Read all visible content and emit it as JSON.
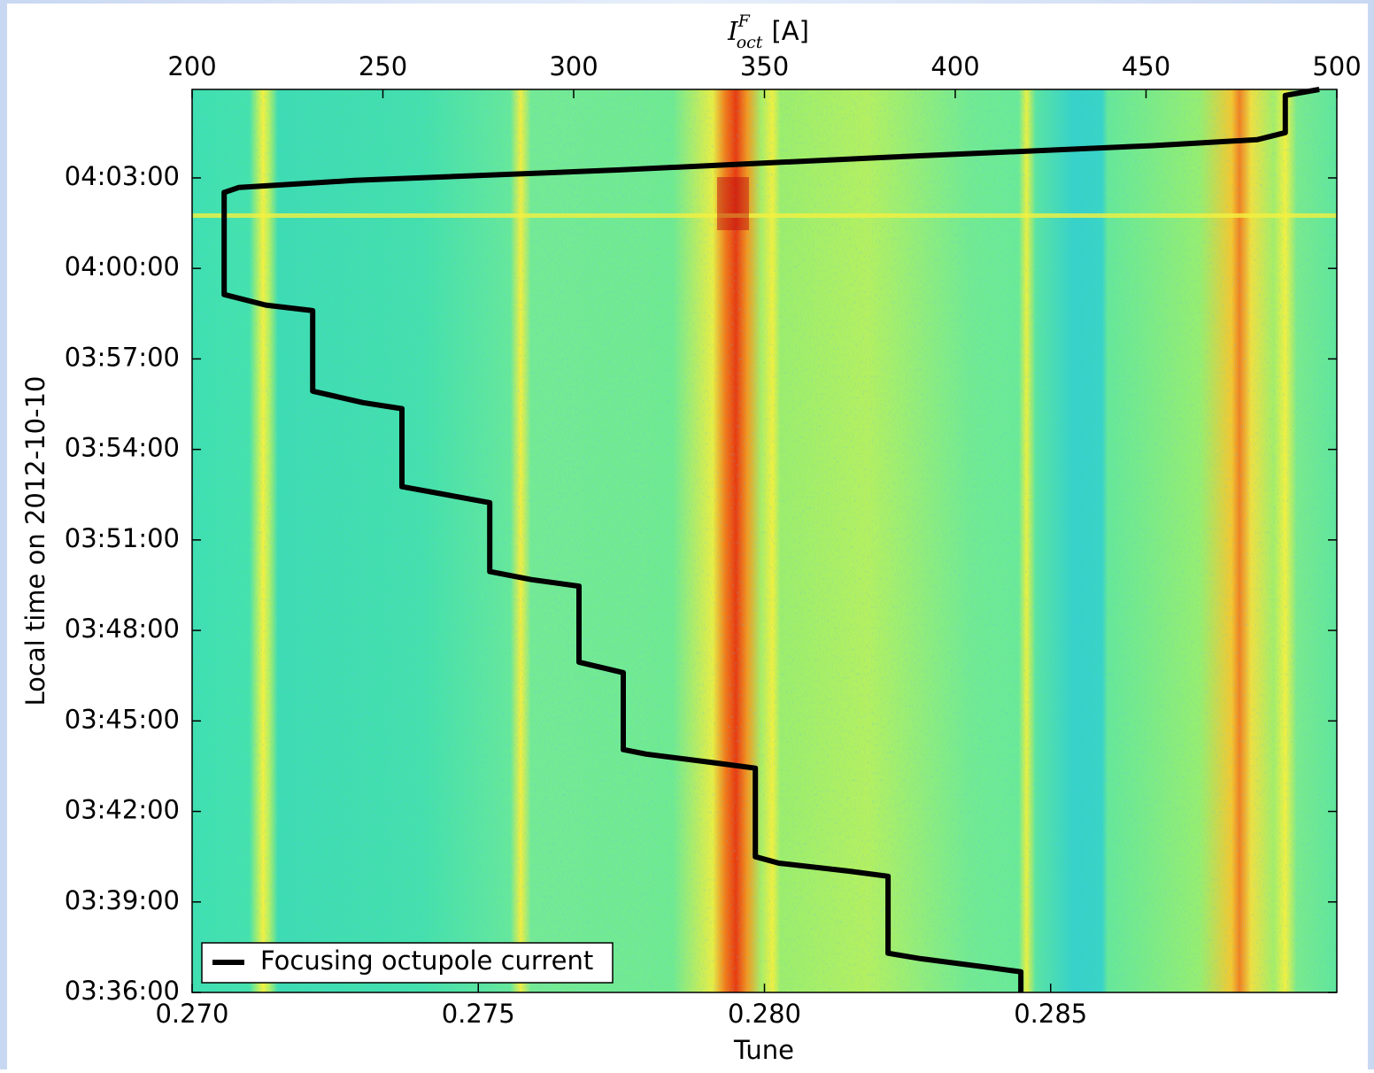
{
  "chart_data": {
    "type": "line",
    "xlabel": "Tune",
    "ylabel": "Local time on 2012-10-10",
    "x2label": {
      "symbol": "I",
      "sup": "F",
      "sub": "oct",
      "unit": "[A]"
    },
    "xlim": [
      0.27,
      0.29
    ],
    "xticks": [
      {
        "value": 0.27,
        "label": "0.270"
      },
      {
        "value": 0.275,
        "label": "0.275"
      },
      {
        "value": 0.28,
        "label": "0.280"
      },
      {
        "value": 0.285,
        "label": "0.285"
      }
    ],
    "x2lim": [
      200,
      500
    ],
    "x2ticks": [
      200,
      250,
      300,
      350,
      400,
      450,
      500
    ],
    "ylim": [
      "03:36:00",
      "04:05:56"
    ],
    "yticks": [
      "03:36:00",
      "03:39:00",
      "03:42:00",
      "03:45:00",
      "03:48:00",
      "03:51:00",
      "03:54:00",
      "03:57:00",
      "04:00:00",
      "04:03:00"
    ],
    "legend": "lower left",
    "series": [
      {
        "name": "Focusing octupole current",
        "color": "#000000",
        "axis": "x2",
        "x": [
          "03:36:00",
          "03:36:41",
          "03:36:49",
          "03:37:07",
          "03:37:18",
          "03:39:51",
          "03:40:01",
          "03:40:17",
          "03:40:30",
          "03:43:26",
          "03:43:36",
          "03:43:54",
          "03:44:03",
          "03:46:36",
          "03:46:57",
          "03:49:28",
          "03:49:41",
          "03:49:57",
          "03:52:14",
          "03:52:28",
          "03:52:46",
          "03:55:21",
          "03:55:33",
          "03:55:56",
          "03:58:36",
          "03:58:47",
          "03:59:08",
          "04:02:31",
          "04:02:41",
          "04:02:55",
          "04:03:16",
          "04:03:41",
          "04:04:04",
          "04:04:16",
          "04:04:30",
          "04:05:44",
          "04:05:56"
        ],
        "values": [
          417.2,
          417.2,
          409.5,
          391,
          382.4,
          382.4,
          372.4,
          353.8,
          347.6,
          347.6,
          337.6,
          319.0,
          313.0,
          313.0,
          301.4,
          301.4,
          288.9,
          278.0,
          278.0,
          268.0,
          255.0,
          255.0,
          244.8,
          231.6,
          231.6,
          219.3,
          208.4,
          208.4,
          212.3,
          242.5,
          312.1,
          381.7,
          451.3,
          479.1,
          486.5,
          486.5,
          495.4
        ]
      }
    ]
  }
}
